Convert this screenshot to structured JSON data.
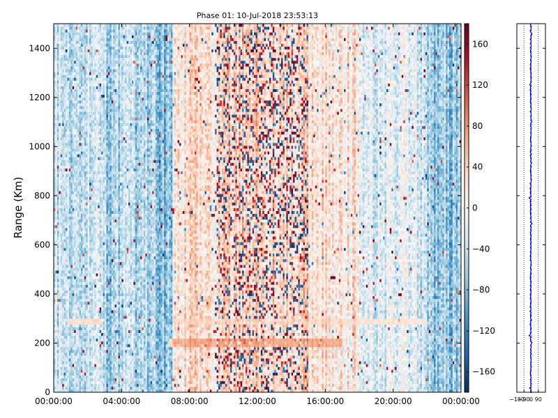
{
  "chart_data": [
    {
      "type": "heatmap",
      "title": "Phase 01: 10-Jul-2018 23:53:13",
      "xlabel": "",
      "ylabel": "Range (Km)",
      "x_tick_labels": [
        "00:00:00",
        "04:00:00",
        "08:00:00",
        "12:00:00",
        "16:00:00",
        "20:00:00",
        "00:00:00"
      ],
      "x_tick_hours": [
        0,
        4,
        8,
        12,
        16,
        20,
        24
      ],
      "xlim_hours": [
        0,
        24
      ],
      "y_ticks": [
        0,
        200,
        400,
        600,
        800,
        1000,
        1200,
        1400
      ],
      "ylim": [
        0,
        1500
      ],
      "colormap": "RdBu_r",
      "colorbar": {
        "vmin": -180,
        "vmax": 180,
        "ticks": [
          -160,
          -120,
          -80,
          -40,
          0,
          40,
          80,
          120,
          160
        ],
        "tick_labels": [
          "−160",
          "−120",
          "−80",
          "−40",
          "0",
          "40",
          "80",
          "120",
          "160"
        ]
      },
      "phase_profile": [
        {
          "hours": [
            0,
            3
          ],
          "mean": -60
        },
        {
          "hours": [
            3,
            6
          ],
          "mean": -90
        },
        {
          "hours": [
            6,
            7
          ],
          "mean": -120
        },
        {
          "hours": [
            7,
            10
          ],
          "mean": 40
        },
        {
          "hours": [
            10,
            15
          ],
          "mean": 60
        },
        {
          "hours": [
            15,
            18
          ],
          "mean": 30
        },
        {
          "hours": [
            18,
            22
          ],
          "mean": -40
        },
        {
          "hours": [
            22,
            24
          ],
          "mean": -110
        }
      ],
      "features": [
        {
          "range_km": 200,
          "hours": [
            6.8,
            17
          ],
          "value": 60
        },
        {
          "range_km": 290,
          "hours": [
            0.8,
            2.8
          ],
          "value": 45
        },
        {
          "range_km": 290,
          "hours": [
            7,
            22
          ],
          "value": 30
        }
      ],
      "grid": false
    },
    {
      "type": "line",
      "xlim": [
        -180,
        180
      ],
      "x_tick_labels": [
        "−180",
        "−90",
        "0",
        "90"
      ],
      "x_ticks": [
        -180,
        -90,
        0,
        90
      ],
      "ylim": [
        0,
        1500
      ],
      "y_ticks": [
        0,
        200,
        400,
        600,
        800,
        1000,
        1200,
        1400
      ],
      "reference_lines_x": [
        -90,
        0,
        90
      ],
      "mean_phase": -5,
      "spread": 12,
      "line_color": "#0000ff"
    }
  ]
}
